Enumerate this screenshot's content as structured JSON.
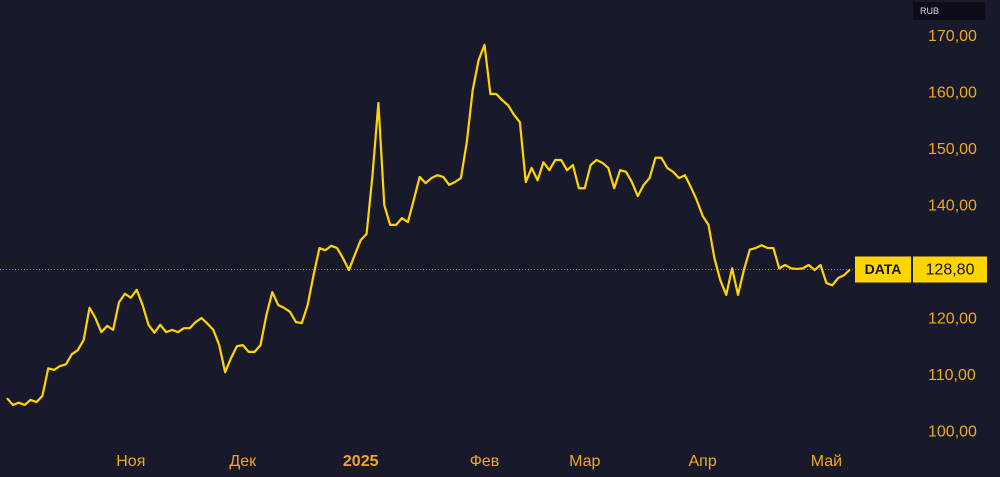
{
  "chart_data": {
    "type": "line",
    "currency": "RUB",
    "series": [
      {
        "name": "DATA",
        "color": "#ffd500",
        "values": [
          106.0,
          104.8,
          105.2,
          104.8,
          105.7,
          105.3,
          106.4,
          111.3,
          111.0,
          111.7,
          112.0,
          113.8,
          114.5,
          116.3,
          122.0,
          120.2,
          117.7,
          118.8,
          118.1,
          123.0,
          124.5,
          123.8,
          125.2,
          122.5,
          119.0,
          117.6,
          119.0,
          117.7,
          118.1,
          117.7,
          118.4,
          118.4,
          119.5,
          120.2,
          119.2,
          118.1,
          115.4,
          110.6,
          113.1,
          115.2,
          115.4,
          114.2,
          114.2,
          115.4,
          120.7,
          124.8,
          122.5,
          122.0,
          121.3,
          119.5,
          119.3,
          122.5,
          127.8,
          132.6,
          132.2,
          133.0,
          132.6,
          130.8,
          128.7,
          131.4,
          134.0,
          135.1,
          145.5,
          158.3,
          140.2,
          136.7,
          136.7,
          137.9,
          137.2,
          141.1,
          145.2,
          144.1,
          145.0,
          145.5,
          145.2,
          143.8,
          144.3,
          145.0,
          151.4,
          160.6,
          165.9,
          168.6,
          159.9,
          159.9,
          158.8,
          157.9,
          156.2,
          154.9,
          144.3,
          146.8,
          144.6,
          147.8,
          146.4,
          148.2,
          148.2,
          146.4,
          147.3,
          143.2,
          143.2,
          147.3,
          148.2,
          147.7,
          146.8,
          143.2,
          146.4,
          146.1,
          144.3,
          141.8,
          143.8,
          145.0,
          148.6,
          148.6,
          146.8,
          146.1,
          145.0,
          145.5,
          143.4,
          141.1,
          138.3,
          136.7,
          130.8,
          126.9,
          124.3,
          129.0,
          124.3,
          128.7,
          132.3,
          132.6,
          133.1,
          132.6,
          132.6,
          129.0,
          129.6,
          129.0,
          128.9,
          129.0,
          129.6,
          128.7,
          129.6,
          126.4,
          126.0,
          127.3,
          127.8,
          128.8
        ],
        "value_labels": [
          null,
          null,
          null,
          null,
          null,
          null,
          null,
          null,
          null,
          null,
          null,
          null,
          null,
          null,
          null,
          null,
          null,
          null,
          null,
          null,
          null,
          null,
          null,
          null,
          null,
          null,
          null,
          null,
          null,
          null,
          null,
          null,
          null,
          null,
          null,
          null,
          null,
          null,
          null,
          null,
          null,
          null,
          null,
          null,
          null,
          null,
          null,
          null,
          null,
          null,
          null,
          null,
          null,
          null,
          null,
          null,
          null,
          null,
          null,
          null,
          null,
          null,
          null,
          null,
          null,
          null,
          null,
          null,
          null,
          null,
          null,
          null,
          null,
          null,
          null,
          null,
          null,
          null,
          null,
          null,
          null,
          null,
          null,
          null,
          null,
          null,
          null,
          null,
          null,
          null,
          null,
          null,
          null,
          null,
          null,
          null,
          null,
          null,
          null,
          null,
          null,
          null,
          null,
          null,
          null,
          null,
          null,
          null,
          null,
          null,
          null,
          null,
          null,
          null,
          null,
          null,
          null,
          null,
          null,
          null,
          null,
          null,
          null,
          null,
          null,
          null,
          null,
          null,
          null,
          null,
          null,
          null,
          null,
          null,
          null,
          null,
          null,
          null,
          null,
          null,
          null,
          null,
          null,
          "128,80"
        ]
      }
    ],
    "xlim": [
      0,
      143
    ],
    "xticks": [
      {
        "value": 21,
        "label": "Ноя"
      },
      {
        "value": 40,
        "label": "Дек"
      },
      {
        "value": 60,
        "label": "2025"
      },
      {
        "value": 81,
        "label": "Фев"
      },
      {
        "value": 98,
        "label": "Мар"
      },
      {
        "value": 118,
        "label": "Апр"
      },
      {
        "value": 139,
        "label": "Май"
      }
    ],
    "ylim": [
      97.35,
      176.55
    ],
    "yticks": [
      {
        "value": 100,
        "label": "100,00"
      },
      {
        "value": 110,
        "label": "110,00"
      },
      {
        "value": 120,
        "label": "120,00"
      },
      {
        "value": 140,
        "label": "140,00"
      },
      {
        "value": 150,
        "label": "150,00"
      },
      {
        "value": 160,
        "label": "160,00"
      },
      {
        "value": 170,
        "label": "170,00"
      }
    ]
  }
}
